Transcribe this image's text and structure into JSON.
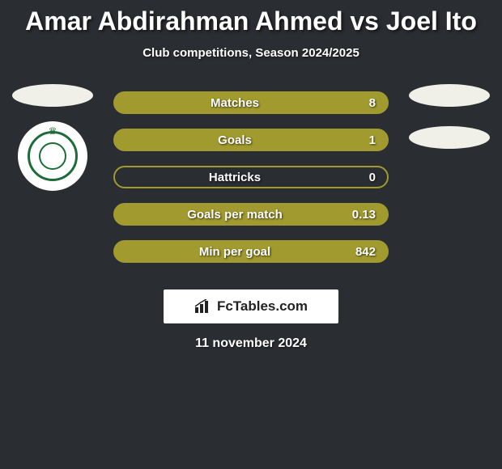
{
  "header": {
    "title": "Amar Abdirahman Ahmed vs Joel Ito",
    "subtitle": "Club competitions, Season 2024/2025"
  },
  "stats": {
    "rows": [
      {
        "label": "Matches",
        "value": "8",
        "fill": "#a19a2e",
        "border": "#a19a2e"
      },
      {
        "label": "Goals",
        "value": "1",
        "fill": "#a19a2e",
        "border": "#a19a2e"
      },
      {
        "label": "Hattricks",
        "value": "0",
        "fill": "transparent",
        "border": "#a19a2e"
      },
      {
        "label": "Goals per match",
        "value": "0.13",
        "fill": "#a19a2e",
        "border": "#a19a2e"
      },
      {
        "label": "Min per goal",
        "value": "842",
        "fill": "#a19a2e",
        "border": "#a19a2e"
      }
    ]
  },
  "branding": {
    "text": "FcTables.com"
  },
  "footer": {
    "date": "11 november 2024"
  },
  "colors": {
    "background": "#2a2d32",
    "ellipse": "#f0f0e8",
    "club_primary": "#1e6b3a"
  }
}
